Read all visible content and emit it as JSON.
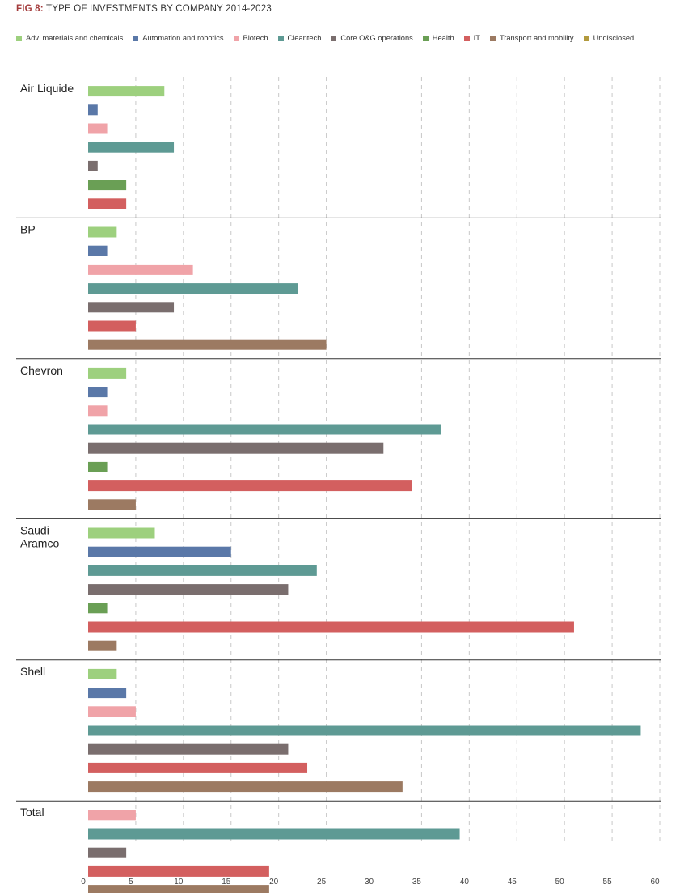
{
  "figure": {
    "lead": "FIG 8:",
    "title": "TYPE OF INVESTMENTS BY COMPANY 2014-2023"
  },
  "chart_data": {
    "type": "bar",
    "orientation": "horizontal",
    "title": "TYPE OF INVESTMENTS BY COMPANY 2014-2023",
    "xlim": [
      0,
      60
    ],
    "x_ticks": [
      0,
      5,
      10,
      15,
      20,
      25,
      30,
      35,
      40,
      45,
      50,
      55,
      60
    ],
    "grid": "vertical dashed",
    "legend_position": "top",
    "series": [
      {
        "name": "Adv. materials and chemicals",
        "color": "#9dd07e"
      },
      {
        "name": "Automation and robotics",
        "color": "#5a78a8"
      },
      {
        "name": "Biotech",
        "color": "#f0a3a8"
      },
      {
        "name": "Cleantech",
        "color": "#5e9a94"
      },
      {
        "name": "Core O&G operations",
        "color": "#7a6e6e"
      },
      {
        "name": "Health",
        "color": "#6a9f55"
      },
      {
        "name": "IT",
        "color": "#d35f5f"
      },
      {
        "name": "Transport and mobility",
        "color": "#9c7a62"
      },
      {
        "name": "Undisclosed",
        "color": "#b29a3e"
      }
    ],
    "groups": [
      {
        "label": [
          "Air Liquide"
        ],
        "bars": [
          {
            "series": "Adv. materials and chemicals",
            "value": 8
          },
          {
            "series": "Automation and robotics",
            "value": 1
          },
          {
            "series": "Biotech",
            "value": 2
          },
          {
            "series": "Cleantech",
            "value": 9
          },
          {
            "series": "Core O&G operations",
            "value": 1
          },
          {
            "series": "Health",
            "value": 4
          },
          {
            "series": "IT",
            "value": 4
          }
        ]
      },
      {
        "label": [
          "BP"
        ],
        "bars": [
          {
            "series": "Adv. materials and chemicals",
            "value": 3
          },
          {
            "series": "Automation and robotics",
            "value": 2
          },
          {
            "series": "Biotech",
            "value": 11
          },
          {
            "series": "Cleantech",
            "value": 22
          },
          {
            "series": "Core O&G operations",
            "value": 9
          },
          {
            "series": "IT",
            "value": 5
          },
          {
            "series": "Transport and mobility",
            "value": 25
          }
        ]
      },
      {
        "label": [
          "Chevron"
        ],
        "bars": [
          {
            "series": "Adv. materials and chemicals",
            "value": 4
          },
          {
            "series": "Automation and robotics",
            "value": 2
          },
          {
            "series": "Biotech",
            "value": 2
          },
          {
            "series": "Cleantech",
            "value": 37
          },
          {
            "series": "Core O&G operations",
            "value": 31
          },
          {
            "series": "Health",
            "value": 2
          },
          {
            "series": "IT",
            "value": 34
          },
          {
            "series": "Transport and mobility",
            "value": 5
          }
        ]
      },
      {
        "label": [
          "Saudi",
          "Aramco"
        ],
        "bars": [
          {
            "series": "Adv. materials and chemicals",
            "value": 7
          },
          {
            "series": "Automation and robotics",
            "value": 15
          },
          {
            "series": "Cleantech",
            "value": 24
          },
          {
            "series": "Core O&G operations",
            "value": 21
          },
          {
            "series": "Health",
            "value": 2
          },
          {
            "series": "IT",
            "value": 51
          },
          {
            "series": "Transport and mobility",
            "value": 3
          }
        ]
      },
      {
        "label": [
          "Shell"
        ],
        "bars": [
          {
            "series": "Adv. materials and chemicals",
            "value": 3
          },
          {
            "series": "Automation and robotics",
            "value": 4
          },
          {
            "series": "Biotech",
            "value": 5
          },
          {
            "series": "Cleantech",
            "value": 58
          },
          {
            "series": "Core O&G operations",
            "value": 21
          },
          {
            "series": "IT",
            "value": 23
          },
          {
            "series": "Transport and mobility",
            "value": 33
          }
        ]
      },
      {
        "label": [
          "Total"
        ],
        "bars": [
          {
            "series": "Biotech",
            "value": 5
          },
          {
            "series": "Cleantech",
            "value": 39
          },
          {
            "series": "Core O&G operations",
            "value": 4
          },
          {
            "series": "IT",
            "value": 19
          },
          {
            "series": "Transport and mobility",
            "value": 19
          }
        ]
      }
    ]
  }
}
